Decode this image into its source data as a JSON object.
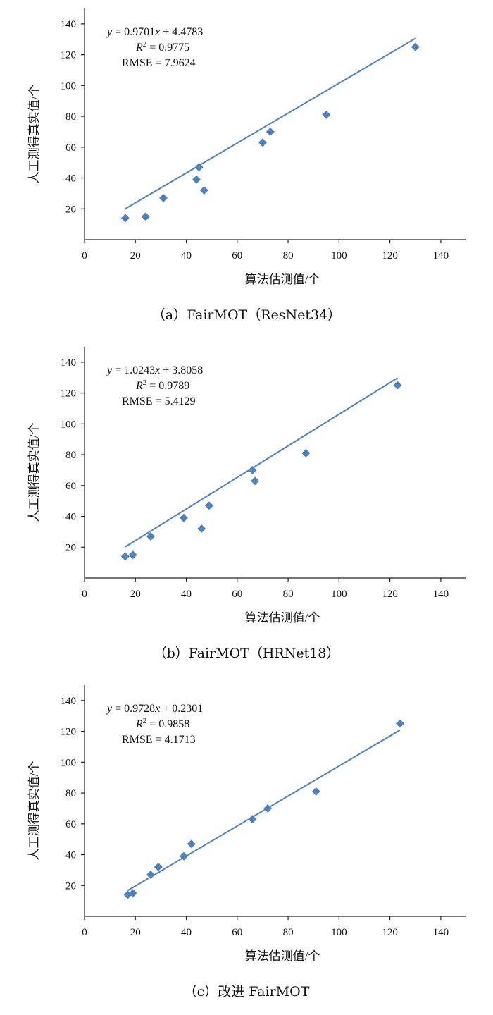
{
  "chart_data": [
    {
      "type": "scatter",
      "xlabel": "算法估测值/个",
      "ylabel": "人工测得真实值/个",
      "xlim": [
        0,
        150
      ],
      "ylim": [
        0,
        150
      ],
      "xticks": [
        0,
        20,
        40,
        60,
        80,
        100,
        120,
        140
      ],
      "yticks": [
        20,
        40,
        60,
        80,
        100,
        120,
        140
      ],
      "grid": false,
      "equation_y": "y",
      "equation_rest": " = 0.9701",
      "equation_x": "x",
      "equation_tail": " + 4.4783",
      "r2_prefix": "R",
      "r2_sup": "2",
      "r2_value": " = 0.9775",
      "rmse": "RMSE = 7.9624",
      "slope": 0.9701,
      "intercept": 4.4783,
      "fit_x_range": [
        16,
        130
      ],
      "x": [
        16,
        24,
        31,
        44,
        45,
        47,
        70,
        73,
        95,
        130
      ],
      "y": [
        14,
        15,
        27,
        39,
        47,
        32,
        63,
        70,
        81,
        125
      ],
      "caption": "（a）FairMOT（ResNet34）"
    },
    {
      "type": "scatter",
      "xlabel": "算法估测值/个",
      "ylabel": "人工测得真实值/个",
      "xlim": [
        0,
        150
      ],
      "ylim": [
        0,
        150
      ],
      "xticks": [
        0,
        20,
        40,
        60,
        80,
        100,
        120,
        140
      ],
      "yticks": [
        20,
        40,
        60,
        80,
        100,
        120,
        140
      ],
      "grid": false,
      "equation_y": "y",
      "equation_rest": " = 1.0243",
      "equation_x": "x",
      "equation_tail": " + 3.8058",
      "r2_prefix": "R",
      "r2_sup": "2",
      "r2_value": " = 0.9789",
      "rmse": "RMSE = 5.4129",
      "slope": 1.0243,
      "intercept": 3.8058,
      "fit_x_range": [
        16,
        123
      ],
      "x": [
        16,
        19,
        26,
        39,
        46,
        49,
        66,
        67,
        87,
        123
      ],
      "y": [
        14,
        15,
        27,
        39,
        32,
        47,
        70,
        63,
        81,
        125
      ],
      "caption": "（b）FairMOT（HRNet18）"
    },
    {
      "type": "scatter",
      "xlabel": "算法估测值/个",
      "ylabel": "人工测得真实值/个",
      "xlim": [
        0,
        150
      ],
      "ylim": [
        0,
        150
      ],
      "xticks": [
        0,
        20,
        40,
        60,
        80,
        100,
        120,
        140
      ],
      "yticks": [
        20,
        40,
        60,
        80,
        100,
        120,
        140
      ],
      "grid": false,
      "equation_y": "y",
      "equation_rest": " = 0.9728",
      "equation_x": "x",
      "equation_tail": " + 0.2301",
      "r2_prefix": "R",
      "r2_sup": "2",
      "r2_value": " = 0.9858",
      "rmse": "RMSE = 4.1713",
      "slope": 0.9728,
      "intercept": 0.2301,
      "fit_x_range": [
        17,
        124
      ],
      "x": [
        17,
        19,
        26,
        29,
        39,
        42,
        66,
        72,
        91,
        124
      ],
      "y": [
        14,
        15,
        27,
        32,
        39,
        47,
        63,
        70,
        81,
        125
      ],
      "caption": "（c）改进 FairMOT"
    }
  ]
}
